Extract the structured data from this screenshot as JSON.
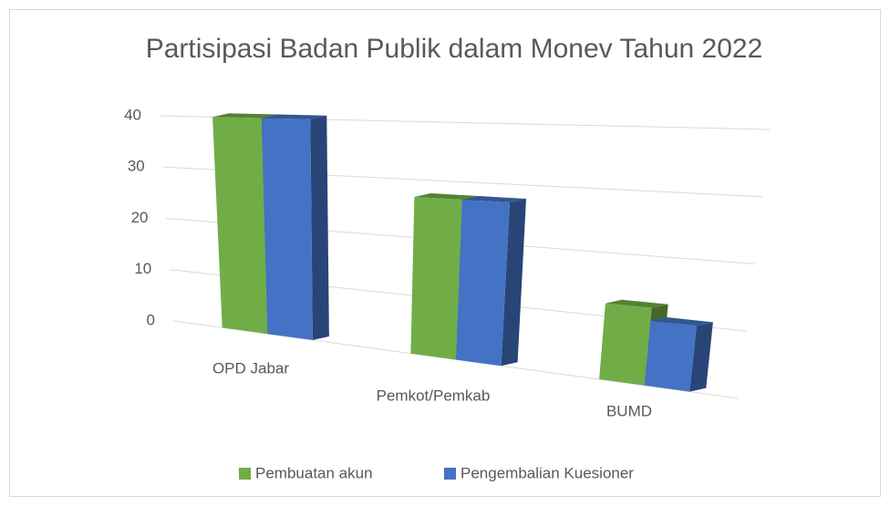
{
  "chart_data": {
    "type": "bar3d",
    "title": "Partisipasi Badan Publik dalam Monev Tahun 2022",
    "categories": [
      "OPD Jabar",
      "Pemkot/Pemkab",
      "BUMD"
    ],
    "series": [
      {
        "name": "Pembuatan akun",
        "color": "#70ad47",
        "values": [
          40,
          27,
          12
        ]
      },
      {
        "name": "Pengembalian Kuesioner",
        "color": "#4472c4",
        "values": [
          40,
          27,
          10
        ]
      }
    ],
    "ylim": [
      0,
      40
    ],
    "yticks": [
      0,
      10,
      20,
      30,
      40
    ],
    "grid": true,
    "legend": "bottom"
  }
}
